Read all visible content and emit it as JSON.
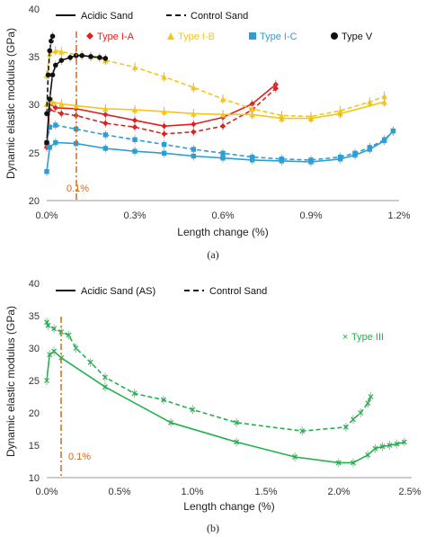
{
  "chart_data": [
    {
      "type": "line",
      "caption": "(a)",
      "xlabel": "Length change (%)",
      "ylabel": "Dynamic elastic modulus (GPa)",
      "xlim": [
        0,
        1.2
      ],
      "ylim": [
        20,
        40
      ],
      "x_ticks": [
        "0.0%",
        "0.3%",
        "0.6%",
        "0.9%",
        "1.2%"
      ],
      "x_tick_values": [
        0,
        0.3,
        0.6,
        0.9,
        1.2
      ],
      "y_ticks": [
        "20",
        "25",
        "30",
        "35",
        "40"
      ],
      "y_tick_values": [
        20,
        25,
        30,
        35,
        40
      ],
      "grid": false,
      "legend": {
        "line_styles": [
          {
            "label": "Acidic Sand",
            "style": "solid"
          },
          {
            "label": "Control Sand",
            "style": "dashed"
          }
        ],
        "markers": [
          {
            "label": "Type I-A",
            "marker": "diamond",
            "color": "#e02020"
          },
          {
            "label": "Type I-B",
            "marker": "triangle",
            "color": "#f5c518"
          },
          {
            "label": "Type I-C",
            "marker": "square",
            "color": "#2a9fd6"
          },
          {
            "label": "Type V",
            "marker": "circle",
            "color": "#111111"
          }
        ]
      },
      "annotations": [
        {
          "text": "0.1%",
          "x": 0.1,
          "color": "#d2691e"
        }
      ],
      "series": [
        {
          "name": "Type I-A",
          "sand": "Acidic Sand",
          "color": "#e02020",
          "x": [
            0.0,
            0.01,
            0.03,
            0.1,
            0.2,
            0.3,
            0.4,
            0.5,
            0.6,
            0.7,
            0.78
          ],
          "y": [
            25.5,
            30.0,
            29.6,
            29.5,
            28.9,
            28.3,
            27.7,
            27.9,
            28.6,
            30.0,
            32.0
          ]
        },
        {
          "name": "Type I-A",
          "sand": "Control Sand",
          "color": "#e02020",
          "x": [
            0.0,
            0.01,
            0.05,
            0.1,
            0.2,
            0.3,
            0.4,
            0.5,
            0.6,
            0.7,
            0.78
          ],
          "y": [
            25.8,
            29.4,
            29.0,
            28.8,
            28.0,
            27.6,
            26.9,
            27.1,
            27.7,
            29.4,
            31.6
          ]
        },
        {
          "name": "Type I-B",
          "sand": "Acidic Sand",
          "color": "#f5c518",
          "x": [
            0.0,
            0.02,
            0.05,
            0.1,
            0.2,
            0.3,
            0.4,
            0.5,
            0.6,
            0.7,
            0.8,
            0.9,
            1.0,
            1.15
          ],
          "y": [
            30.0,
            30.2,
            30.0,
            29.8,
            29.5,
            29.4,
            29.2,
            29.0,
            28.9,
            28.9,
            28.5,
            28.5,
            29.0,
            30.2
          ]
        },
        {
          "name": "Type I-B",
          "sand": "Control Sand",
          "color": "#f5c518",
          "x": [
            0.0,
            0.01,
            0.03,
            0.05,
            0.1,
            0.15,
            0.2,
            0.3,
            0.4,
            0.5,
            0.6,
            0.7,
            0.8,
            0.9,
            1.0,
            1.1,
            1.15
          ],
          "y": [
            33.0,
            35.2,
            35.5,
            35.4,
            35.1,
            34.9,
            34.5,
            33.8,
            32.8,
            31.7,
            30.5,
            29.5,
            28.8,
            28.7,
            29.3,
            30.2,
            30.8
          ]
        },
        {
          "name": "Type I-C",
          "sand": "Acidic Sand",
          "color": "#2a9fd6",
          "x": [
            0.0,
            0.01,
            0.03,
            0.1,
            0.2,
            0.3,
            0.4,
            0.5,
            0.6,
            0.7,
            0.8,
            0.9,
            1.0,
            1.05,
            1.1,
            1.15,
            1.18
          ],
          "y": [
            23.0,
            25.5,
            26.0,
            25.9,
            25.4,
            25.1,
            24.9,
            24.6,
            24.4,
            24.2,
            24.1,
            24.0,
            24.3,
            24.7,
            25.3,
            26.2,
            27.2
          ]
        },
        {
          "name": "Type I-C",
          "sand": "Control Sand",
          "color": "#2a9fd6",
          "x": [
            0.0,
            0.01,
            0.03,
            0.1,
            0.2,
            0.3,
            0.4,
            0.5,
            0.6,
            0.7,
            0.8,
            0.9,
            1.0,
            1.05,
            1.1,
            1.15,
            1.18
          ],
          "y": [
            26.0,
            27.6,
            27.8,
            27.4,
            26.8,
            26.3,
            25.8,
            25.3,
            24.9,
            24.5,
            24.3,
            24.2,
            24.5,
            24.9,
            25.5,
            26.3,
            27.2
          ]
        },
        {
          "name": "Type V",
          "sand": "Acidic Sand",
          "color": "#111111",
          "x": [
            0.0,
            0.01,
            0.02,
            0.03,
            0.05,
            0.08,
            0.1,
            0.12,
            0.15,
            0.18,
            0.2
          ],
          "y": [
            26.0,
            30.5,
            33.0,
            34.0,
            34.5,
            34.8,
            35.0,
            35.0,
            34.9,
            34.8,
            34.7
          ]
        },
        {
          "name": "Type V",
          "sand": "Control Sand",
          "color": "#111111",
          "x": [
            0.0,
            0.005,
            0.01,
            0.015,
            0.02
          ],
          "y": [
            29.0,
            33.0,
            35.5,
            36.5,
            37.0
          ]
        }
      ]
    },
    {
      "type": "line",
      "caption": "(b)",
      "xlabel": "Length change (%)",
      "ylabel": "Dynamic elastic modulus (GPa)",
      "xlim": [
        0,
        2.5
      ],
      "ylim": [
        10,
        40
      ],
      "x_ticks": [
        "0.0%",
        "0.5%",
        "1.0%",
        "1.5%",
        "2.0%",
        "2.5%"
      ],
      "x_tick_values": [
        0,
        0.5,
        1.0,
        1.5,
        2.0,
        2.5
      ],
      "y_ticks": [
        "10",
        "15",
        "20",
        "25",
        "30",
        "35",
        "40"
      ],
      "y_tick_values": [
        10,
        15,
        20,
        25,
        30,
        35,
        40
      ],
      "grid": false,
      "legend": {
        "line_styles": [
          {
            "label": "Acidic Sand (AS)",
            "style": "solid"
          },
          {
            "label": "Control Sand",
            "style": "dashed"
          }
        ],
        "markers": [
          {
            "label": "Type III",
            "marker": "x",
            "color": "#22b14c"
          }
        ]
      },
      "annotations": [
        {
          "text": "0.1%",
          "x": 0.1,
          "color": "#d2691e"
        }
      ],
      "series": [
        {
          "name": "Type III",
          "sand": "Acidic Sand (AS)",
          "color": "#22b14c",
          "x": [
            0.0,
            0.02,
            0.05,
            0.1,
            0.4,
            0.85,
            1.3,
            1.7,
            2.0,
            2.1,
            2.2,
            2.25,
            2.3,
            2.35,
            2.4,
            2.45
          ],
          "y": [
            25.0,
            29.0,
            29.5,
            28.5,
            24.0,
            18.5,
            15.5,
            13.2,
            12.3,
            12.3,
            13.5,
            14.5,
            14.8,
            15.0,
            15.2,
            15.5
          ]
        },
        {
          "name": "Type III",
          "sand": "Control Sand",
          "color": "#22b14c",
          "x": [
            0.0,
            0.01,
            0.05,
            0.1,
            0.15,
            0.2,
            0.3,
            0.4,
            0.6,
            0.8,
            1.0,
            1.3,
            1.75,
            2.05,
            2.1,
            2.15,
            2.2,
            2.22
          ],
          "y": [
            34.0,
            33.5,
            33.0,
            32.5,
            32.0,
            30.0,
            27.8,
            25.5,
            23.0,
            22.0,
            20.5,
            18.5,
            17.2,
            17.8,
            19.0,
            20.0,
            21.5,
            22.5
          ]
        }
      ]
    }
  ]
}
